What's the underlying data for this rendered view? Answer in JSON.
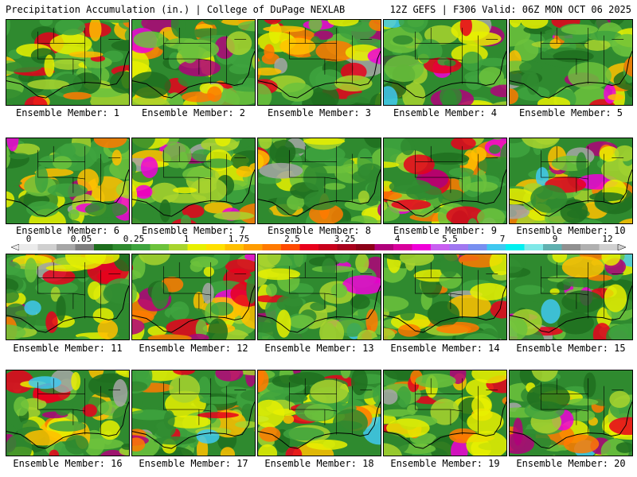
{
  "header": {
    "left": "Precipitation Accumulation (in.) | College of DuPage NEXLAB",
    "right": "12Z GEFS | F306 Valid: 06Z MON OCT 06 2025"
  },
  "members": [
    {
      "label": "Ensemble Member: 1"
    },
    {
      "label": "Ensemble Member: 2"
    },
    {
      "label": "Ensemble Member: 3"
    },
    {
      "label": "Ensemble Member: 4"
    },
    {
      "label": "Ensemble Member: 5"
    },
    {
      "label": "Ensemble Member: 6"
    },
    {
      "label": "Ensemble Member: 7"
    },
    {
      "label": "Ensemble Member: 8"
    },
    {
      "label": "Ensemble Member: 9"
    },
    {
      "label": "Ensemble Member: 10"
    },
    {
      "label": "Ensemble Member: 11"
    },
    {
      "label": "Ensemble Member: 12"
    },
    {
      "label": "Ensemble Member: 13"
    },
    {
      "label": "Ensemble Member: 14"
    },
    {
      "label": "Ensemble Member: 15"
    },
    {
      "label": "Ensemble Member: 16"
    },
    {
      "label": "Ensemble Member: 17"
    },
    {
      "label": "Ensemble Member: 18"
    },
    {
      "label": "Ensemble Member: 19"
    },
    {
      "label": "Ensemble Member: 20"
    }
  ],
  "legend": {
    "ticks": [
      "0",
      "0.05",
      "0.25",
      "1",
      "1.75",
      "2.5",
      "3.25",
      "4",
      "5.5",
      "7",
      "9",
      "12"
    ],
    "colors": [
      "#ebebeb",
      "#cfcfcf",
      "#a6a6a6",
      "#7f7f7f",
      "#1e6e1e",
      "#2f8a2f",
      "#3ea33e",
      "#6cc23c",
      "#a8d42e",
      "#e8f000",
      "#ffe000",
      "#ffc000",
      "#ff9d00",
      "#ff7a00",
      "#ff4a00",
      "#e8001c",
      "#c8001c",
      "#a8001c",
      "#8c0018",
      "#b0007a",
      "#d8009c",
      "#f000d8",
      "#c860f0",
      "#a078f0",
      "#7890f0",
      "#40c8f0",
      "#00f0f0",
      "#80e8e8",
      "#60b0b0",
      "#909090",
      "#b0b0b0",
      "#d0d0d0"
    ]
  }
}
